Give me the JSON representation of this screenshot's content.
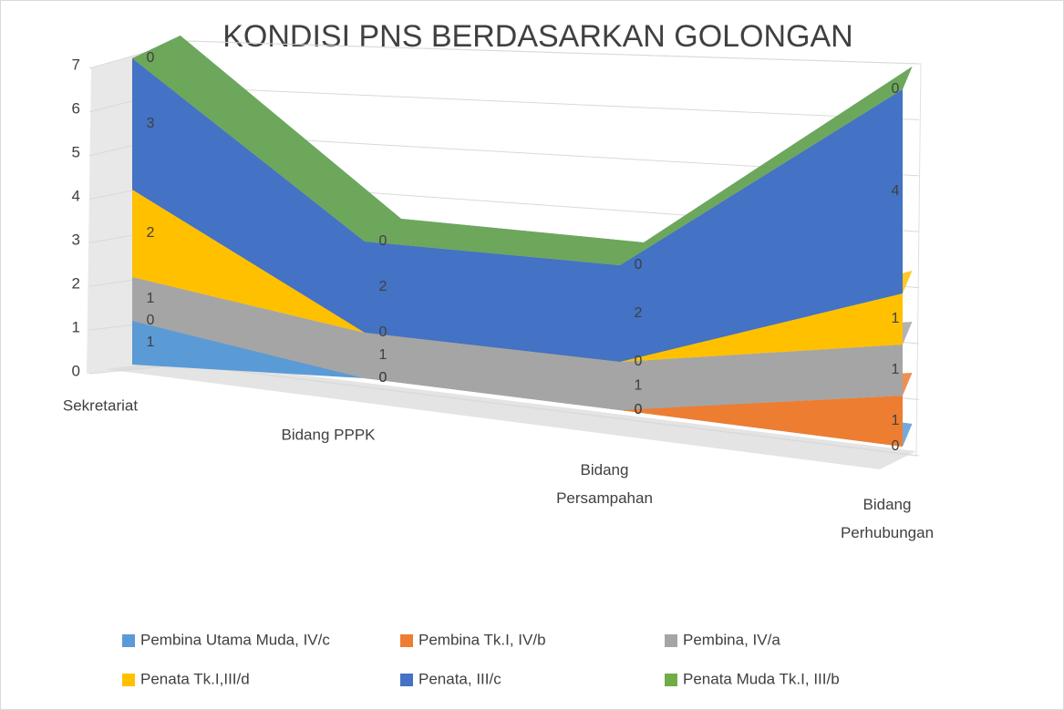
{
  "chart_data": {
    "type": "area3d",
    "title": "KONDISI PNS BERDASARKAN GOLONGAN",
    "categories": [
      "Sekretariat",
      "Bidang PPPK",
      "Bidang Persampahan",
      "Bidang Perhubungan"
    ],
    "series": [
      {
        "name": "Pembina Utama Muda, IV/c",
        "color": "#5b9bd5",
        "values": [
          1,
          0,
          0,
          0
        ]
      },
      {
        "name": "Pembina Tk.I, IV/b",
        "color": "#ed7d31",
        "values": [
          0,
          0,
          0,
          1
        ]
      },
      {
        "name": "Pembina, IV/a",
        "color": "#a5a5a5",
        "values": [
          1,
          1,
          1,
          1
        ]
      },
      {
        "name": "Penata Tk.I,III/d",
        "color": "#ffc000",
        "values": [
          2,
          0,
          0,
          1
        ]
      },
      {
        "name": "Penata, III/c",
        "color": "#4472c4",
        "values": [
          3,
          2,
          2,
          4
        ]
      },
      {
        "name": "Penata Muda Tk.I, III/b",
        "color": "#70ad47",
        "values": [
          0,
          0,
          0,
          0
        ]
      }
    ],
    "ylim": [
      0,
      7
    ],
    "yticks": [
      0,
      1,
      2,
      3,
      4,
      5,
      6,
      7
    ],
    "grid": true,
    "stacked": true
  }
}
